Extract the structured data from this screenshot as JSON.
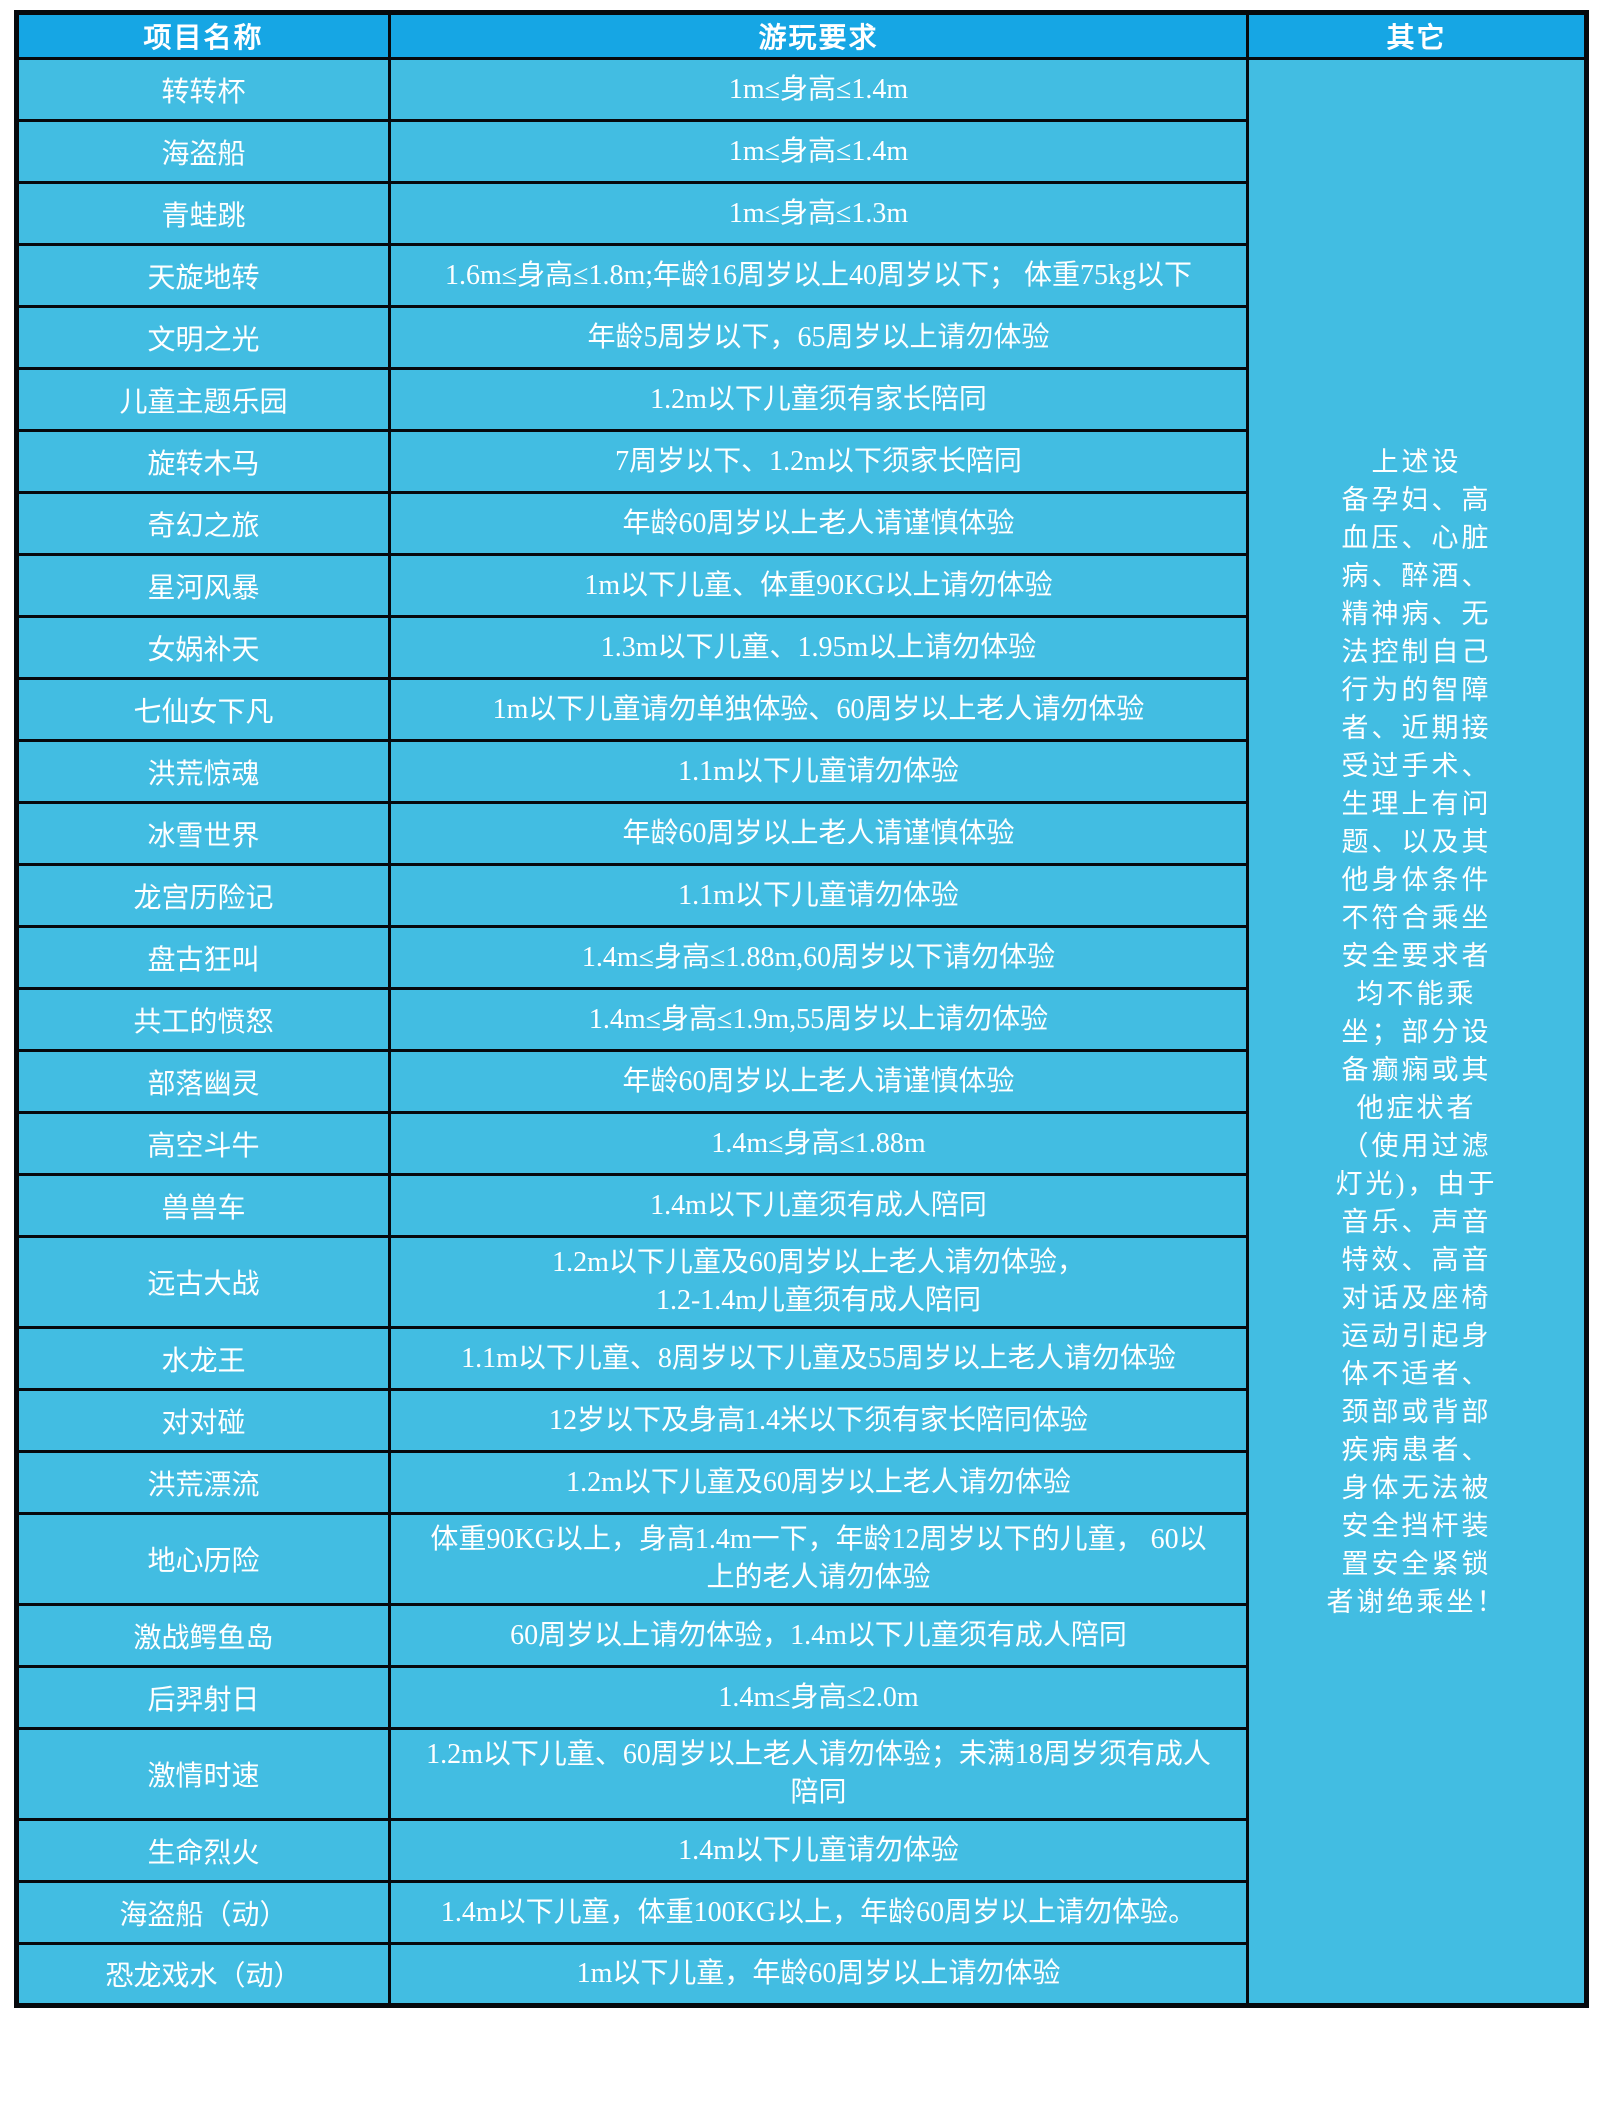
{
  "table": {
    "headers": [
      "项目名称",
      "游玩要求",
      "其它"
    ],
    "rows": [
      {
        "name": "转转杯",
        "requirement": "1m≤身高≤1.4m"
      },
      {
        "name": "海盗船",
        "requirement": "1m≤身高≤1.4m"
      },
      {
        "name": "青蛙跳",
        "requirement": "1m≤身高≤1.3m"
      },
      {
        "name": "天旋地转",
        "requirement": "1.6m≤身高≤1.8m;年龄16周岁以上40周岁以下； 体重75kg以下"
      },
      {
        "name": "文明之光",
        "requirement": "年龄5周岁以下，65周岁以上请勿体验"
      },
      {
        "name": "儿童主题乐园",
        "requirement": "1.2m以下儿童须有家长陪同"
      },
      {
        "name": "旋转木马",
        "requirement": "7周岁以下、1.2m以下须家长陪同"
      },
      {
        "name": "奇幻之旅",
        "requirement": "年龄60周岁以上老人请谨慎体验"
      },
      {
        "name": "星河风暴",
        "requirement": "1m以下儿童、体重90KG以上请勿体验"
      },
      {
        "name": "女娲补天",
        "requirement": "1.3m以下儿童、1.95m以上请勿体验"
      },
      {
        "name": "七仙女下凡",
        "requirement": "1m以下儿童请勿单独体验、60周岁以上老人请勿体验"
      },
      {
        "name": "洪荒惊魂",
        "requirement": "1.1m以下儿童请勿体验"
      },
      {
        "name": "冰雪世界",
        "requirement": "年龄60周岁以上老人请谨慎体验"
      },
      {
        "name": "龙宫历险记",
        "requirement": "1.1m以下儿童请勿体验"
      },
      {
        "name": "盘古狂叫",
        "requirement": "1.4m≤身高≤1.88m,60周岁以下请勿体验"
      },
      {
        "name": "共工的愤怒",
        "requirement": "1.4m≤身高≤1.9m,55周岁以上请勿体验"
      },
      {
        "name": "部落幽灵",
        "requirement": "年龄60周岁以上老人请谨慎体验"
      },
      {
        "name": "高空斗牛",
        "requirement": "1.4m≤身高≤1.88m"
      },
      {
        "name": "兽兽车",
        "requirement": "1.4m以下儿童须有成人陪同"
      },
      {
        "name": "远古大战",
        "requirement": "1.2m以下儿童及60周岁以上老人请勿体验，\n1.2-1.4m儿童须有成人陪同"
      },
      {
        "name": "水龙王",
        "requirement": "1.1m以下儿童、8周岁以下儿童及55周岁以上老人请勿体验"
      },
      {
        "name": "对对碰",
        "requirement": "12岁以下及身高1.4米以下须有家长陪同体验"
      },
      {
        "name": "洪荒漂流",
        "requirement": "1.2m以下儿童及60周岁以上老人请勿体验"
      },
      {
        "name": "地心历险",
        "requirement": "体重90KG以上，身高1.4m一下，年龄12周岁以下的儿童， 60以\n上的老人请勿体验"
      },
      {
        "name": "激战鳄鱼岛",
        "requirement": "60周岁以上请勿体验，1.4m以下儿童须有成人陪同"
      },
      {
        "name": "后羿射日",
        "requirement": "1.4m≤身高≤2.0m"
      },
      {
        "name": "激情时速",
        "requirement": "1.2m以下儿童、60周岁以上老人请勿体验；未满18周岁须有成人\n陪同"
      },
      {
        "name": "生命烈火",
        "requirement": "1.4m以下儿童请勿体验"
      },
      {
        "name": "海盗船（动）",
        "requirement": "1.4m以下儿童，体重100KG以上，年龄60周岁以上请勿体验。"
      },
      {
        "name": "恐龙戏水（动）",
        "requirement": "1m以下儿童，年龄60周岁以上请勿体验"
      }
    ],
    "other_note": {
      "lines": [
        "上述设",
        "备孕妇、高",
        "血压、心脏",
        "病、醉酒、",
        "精神病、无",
        "法控制自己",
        "行为的智障",
        "者、近期接",
        "受过手术、",
        "生理上有问",
        "题、以及其",
        "他身体条件",
        "不符合乘坐",
        "安全要求者",
        "均不能乘",
        "坐；部分设",
        "备癫痫或其",
        "他症状者",
        "（使用过滤",
        "灯光)，由于",
        "音乐、声音",
        "特效、高音",
        "对话及座椅",
        "运动引起身",
        "体不适者、",
        "颈部或背部",
        "疾病患者、",
        "身体无法被",
        "安全挡杆装",
        "置安全紧锁",
        "者谢绝乘坐！"
      ]
    },
    "colors": {
      "header_bg": "#16a6e4",
      "row_bg": "#42bde2",
      "border": "#06090d",
      "text": "#ffffff",
      "page_bg": "#ffffff"
    }
  }
}
